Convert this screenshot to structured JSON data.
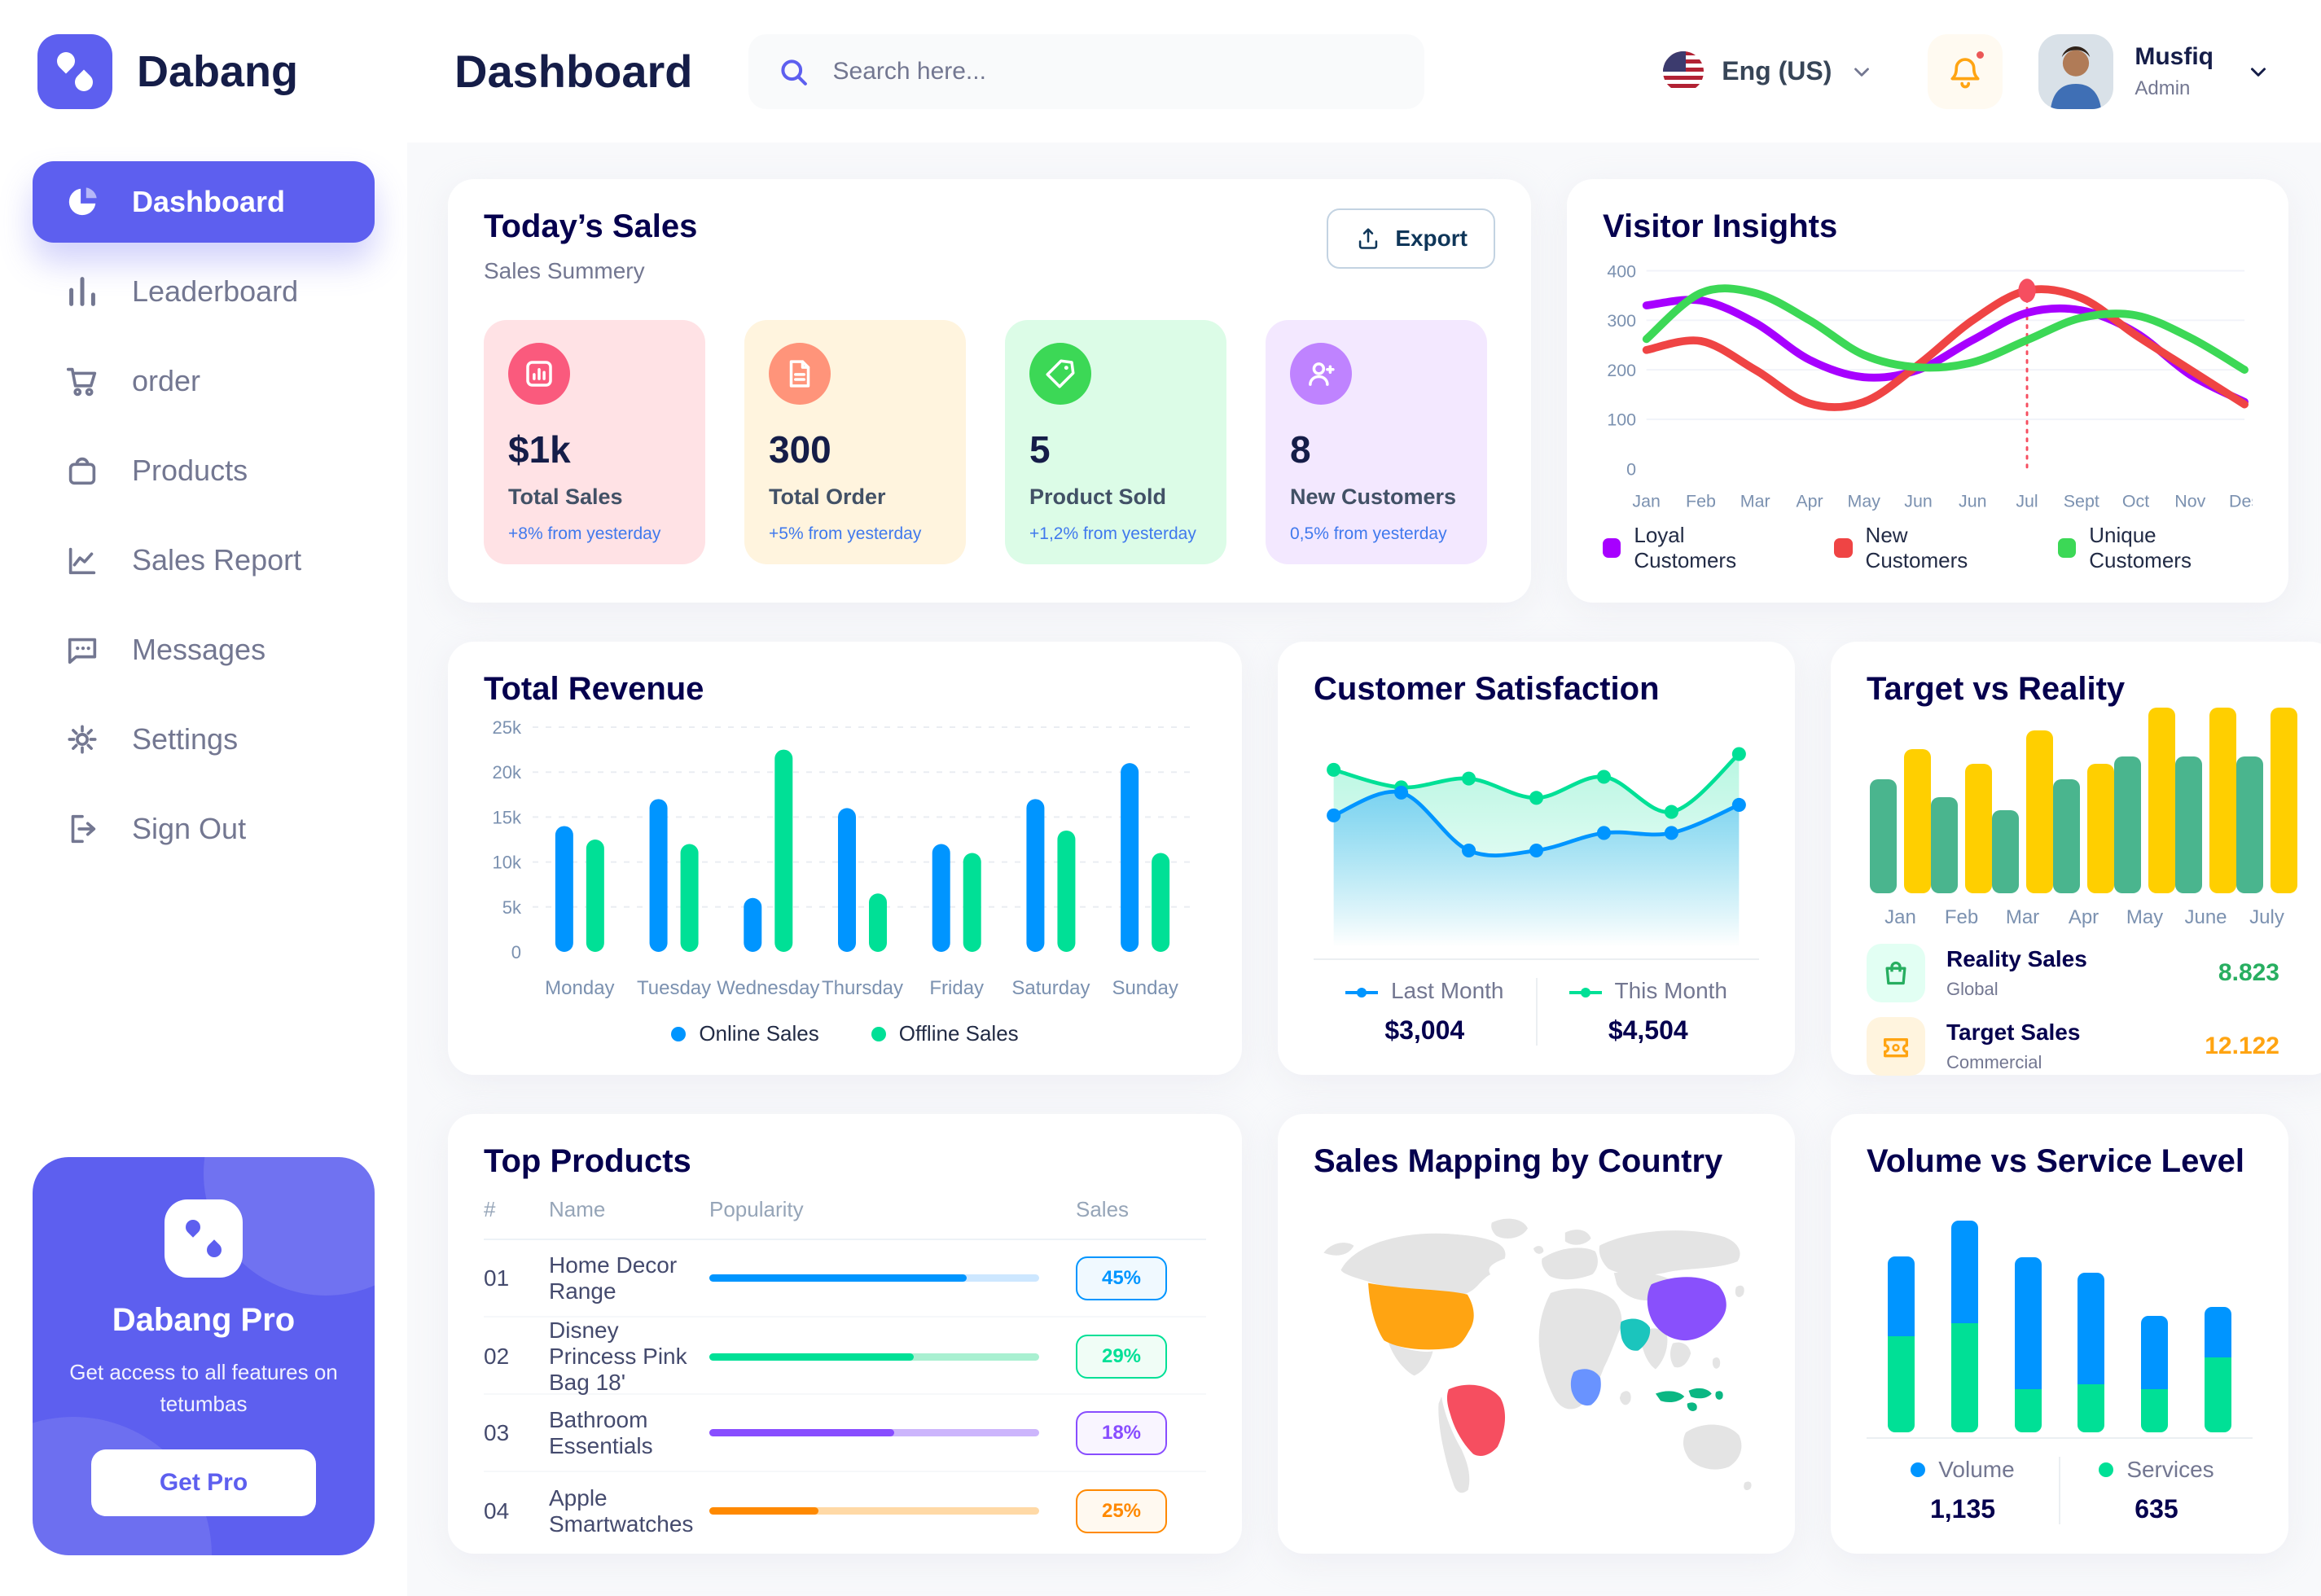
{
  "app": {
    "logo_text": "Dabang"
  },
  "header": {
    "title": "Dashboard",
    "search_placeholder": "Search here...",
    "language": "Eng (US)",
    "user_name": "Musfiq",
    "user_role": "Admin"
  },
  "sidebar": {
    "items": [
      {
        "label": "Dashboard",
        "icon": "pie-chart",
        "active": true
      },
      {
        "label": "Leaderboard",
        "icon": "bar-chart",
        "active": false
      },
      {
        "label": "order",
        "icon": "cart",
        "active": false
      },
      {
        "label": "Products",
        "icon": "bag",
        "active": false
      },
      {
        "label": "Sales Report",
        "icon": "line-chart",
        "active": false
      },
      {
        "label": "Messages",
        "icon": "message",
        "active": false
      },
      {
        "label": "Settings",
        "icon": "gear",
        "active": false
      },
      {
        "label": "Sign Out",
        "icon": "sign-out",
        "active": false
      }
    ],
    "promo": {
      "title": "Dabang Pro",
      "subtitle": "Get access to all features on tetumbas",
      "cta": "Get Pro"
    }
  },
  "today_sales": {
    "title": "Today’s Sales",
    "subtitle": "Sales Summery",
    "export_label": "Export",
    "stats": [
      {
        "value": "$1k",
        "label": "Total Sales",
        "delta": "+8% from yesterday",
        "bg": "#FFE2E5",
        "icon_bg": "#FA5A7D",
        "icon": "bar-graph"
      },
      {
        "value": "300",
        "label": "Total Order",
        "delta": "+5% from yesterday",
        "bg": "#FFF4DE",
        "icon_bg": "#FF947A",
        "icon": "order-doc"
      },
      {
        "value": "5",
        "label": "Product Sold",
        "delta": "+1,2% from yesterday",
        "bg": "#DCFCE7",
        "icon_bg": "#3CD856",
        "icon": "tag"
      },
      {
        "value": "8",
        "label": "New Customers",
        "delta": "0,5% from yesterday",
        "bg": "#F3E8FF",
        "icon_bg": "#BF83FF",
        "icon": "user-plus"
      }
    ]
  },
  "chart_data": [
    {
      "id": "visitor_insights",
      "type": "line",
      "title": "Visitor Insights",
      "x_labels": [
        "Jan",
        "Feb",
        "Mar",
        "Apr",
        "May",
        "Jun",
        "Jun",
        "Jul",
        "Sept",
        "Oct",
        "Nov",
        "Des"
      ],
      "ylim": [
        0,
        400
      ],
      "y_ticks": [
        0,
        100,
        200,
        300,
        400
      ],
      "grid": true,
      "legend_position": "bottom",
      "series": [
        {
          "name": "Loyal Customers",
          "color": "#A700FF",
          "values": [
            330,
            340,
            295,
            220,
            185,
            200,
            260,
            315,
            320,
            275,
            190,
            135
          ]
        },
        {
          "name": "New Customers",
          "color": "#EF4444",
          "values": [
            240,
            258,
            200,
            132,
            135,
            210,
            300,
            360,
            345,
            270,
            200,
            130
          ]
        },
        {
          "name": "Unique Customers",
          "color": "#3CD856",
          "values": [
            262,
            355,
            355,
            300,
            230,
            205,
            215,
            260,
            305,
            310,
            265,
            200
          ]
        }
      ],
      "annotation": {
        "series": "New Customers",
        "x_index": 7,
        "value": 360
      }
    },
    {
      "id": "total_revenue",
      "type": "bar",
      "title": "Total Revenue",
      "categories": [
        "Monday",
        "Tuesday",
        "Wednesday",
        "Thursday",
        "Friday",
        "Saturday",
        "Sunday"
      ],
      "ylim": [
        0,
        25000
      ],
      "y_tick_labels": [
        "0",
        "5k",
        "10k",
        "15k",
        "20k",
        "25k"
      ],
      "grid": true,
      "legend_position": "bottom",
      "series": [
        {
          "name": "Online Sales",
          "color": "#0095FF",
          "values": [
            14000,
            17000,
            6000,
            16000,
            12000,
            17000,
            21000
          ]
        },
        {
          "name": "Offline Sales",
          "color": "#00E096",
          "values": [
            12500,
            12000,
            22500,
            6500,
            11000,
            13500,
            11000
          ]
        }
      ]
    },
    {
      "id": "customer_satisfaction",
      "type": "area",
      "title": "Customer Satisfaction",
      "ylim": [
        0,
        110
      ],
      "grid": false,
      "legend_position": "bottom",
      "series": [
        {
          "name": "Last Month",
          "color": "#0095FF",
          "total": "$3,004",
          "values": [
            62,
            75,
            42,
            42,
            52,
            52,
            68
          ]
        },
        {
          "name": "This Month",
          "color": "#00E096",
          "total": "$4,504",
          "values": [
            88,
            78,
            83,
            72,
            84,
            64,
            97
          ]
        }
      ]
    },
    {
      "id": "target_vs_reality",
      "type": "bar",
      "title": "Target vs Reality",
      "categories": [
        "Jan",
        "Feb",
        "Mar",
        "Apr",
        "May",
        "June",
        "July"
      ],
      "ylim": [
        0,
        14
      ],
      "grid": false,
      "legend_position": "bottom",
      "series": [
        {
          "name": "Reality Sales",
          "color": "#4AB58E",
          "values": [
            8.5,
            7.2,
            6.2,
            8.5,
            10.2,
            10.2,
            10.2
          ]
        },
        {
          "name": "Target Sales",
          "color": "#FFCF00",
          "values": [
            10.8,
            9.7,
            12.2,
            9.7,
            13.9,
            13.9,
            13.9
          ]
        }
      ],
      "legend": [
        {
          "label": "Reality Sales",
          "sublabel": "Global",
          "value": "8.823",
          "value_color": "#27AE60",
          "icon_bg": "#E2FFF3",
          "icon": "shopping-bag"
        },
        {
          "label": "Target Sales",
          "sublabel": "Commercial",
          "value": "12.122",
          "value_color": "#FFA412",
          "icon_bg": "#FFF4DE",
          "icon": "ticket"
        }
      ]
    },
    {
      "id": "top_products",
      "type": "table",
      "title": "Top Products",
      "columns": [
        "#",
        "Name",
        "Popularity",
        "Sales"
      ],
      "rows": [
        {
          "num": "01",
          "name": "Home Decor Range",
          "fill_pct": 78,
          "sales": "45%",
          "color": "#0095FF",
          "track": "#CDE7FF",
          "badge_bg": "#F0F9FF"
        },
        {
          "num": "02",
          "name": "Disney Princess Pink Bag 18'",
          "fill_pct": 62,
          "sales": "29%",
          "color": "#00E096",
          "track": "#A9F0D1",
          "badge_bg": "#F0FDF6"
        },
        {
          "num": "03",
          "name": "Bathroom Essentials",
          "fill_pct": 56,
          "sales": "18%",
          "color": "#884DFF",
          "track": "#CCB5FC",
          "badge_bg": "#F9F5FF"
        },
        {
          "num": "04",
          "name": "Apple Smartwatches",
          "fill_pct": 33,
          "sales": "25%",
          "color": "#FF8900",
          "track": "#FFD9A6",
          "badge_bg": "#FFF9F0"
        }
      ]
    },
    {
      "id": "sales_map",
      "type": "heatmap",
      "title": "Sales Mapping by Country",
      "base_color": "#E4E4E4",
      "countries": {
        "usa": {
          "label": "United States",
          "color": "#FFA412"
        },
        "brazil": {
          "label": "Brazil",
          "color": "#F64E60"
        },
        "china": {
          "label": "China",
          "color": "#8950FC"
        },
        "saudi": {
          "label": "Saudi Arabia",
          "color": "#1BC5BD"
        },
        "congo": {
          "label": "DR Congo",
          "color": "#6993FF"
        },
        "indonesia": {
          "label": "Indonesia",
          "color": "#0BB783"
        }
      }
    },
    {
      "id": "volume_service",
      "type": "stacked_bar",
      "title": "Volume vs Service Level",
      "ylim": [
        0,
        100
      ],
      "legend_position": "bottom",
      "series": [
        {
          "name": "Volume",
          "color": "#0095FF",
          "total": "1,135",
          "values": [
            35,
            45,
            58,
            49,
            32,
            22
          ]
        },
        {
          "name": "Services",
          "color": "#00E096",
          "total": "635",
          "values": [
            42,
            48,
            19,
            21,
            19,
            33
          ]
        }
      ]
    }
  ]
}
